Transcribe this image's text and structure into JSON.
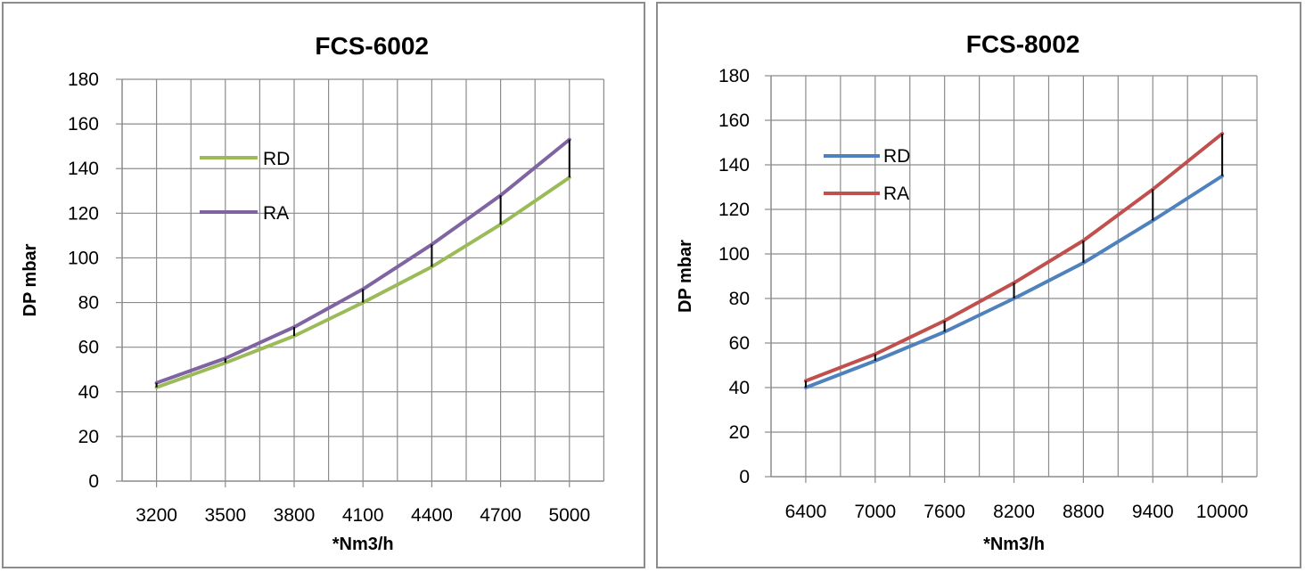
{
  "chart_data": [
    {
      "type": "line",
      "title": "FCS-6002",
      "xlabel": "*Nm3/h",
      "ylabel": "DP mbar",
      "categories": [
        "3200",
        "3500",
        "3800",
        "4100",
        "4400",
        "4700",
        "5000"
      ],
      "ylim": [
        0,
        180
      ],
      "yticks": [
        "0",
        "20",
        "40",
        "60",
        "80",
        "100",
        "120",
        "140",
        "160",
        "180"
      ],
      "grid": true,
      "legend_position": "upper-left-inside",
      "series": [
        {
          "name": "RD",
          "color": "#9bbb59",
          "values": [
            42,
            53,
            65,
            80,
            96,
            115,
            136
          ]
        },
        {
          "name": "RA",
          "color": "#8064a2",
          "values": [
            44,
            55,
            69,
            86,
            106,
            128,
            153
          ]
        }
      ],
      "difference_markers": true
    },
    {
      "type": "line",
      "title": "FCS-8002",
      "xlabel": "*Nm3/h",
      "ylabel": "DP mbar",
      "categories": [
        "6400",
        "7000",
        "7600",
        "8200",
        "8800",
        "9400",
        "10000"
      ],
      "ylim": [
        0,
        180
      ],
      "yticks": [
        "0",
        "20",
        "40",
        "60",
        "80",
        "100",
        "120",
        "140",
        "160",
        "180"
      ],
      "grid": true,
      "legend_position": "upper-left-inside",
      "series": [
        {
          "name": "RD",
          "color": "#4f81bd",
          "values": [
            40,
            52,
            65,
            80,
            96,
            115,
            135
          ]
        },
        {
          "name": "RA",
          "color": "#c0504d",
          "values": [
            43,
            55,
            70,
            87,
            106,
            129,
            154
          ]
        }
      ],
      "difference_markers": true
    }
  ]
}
